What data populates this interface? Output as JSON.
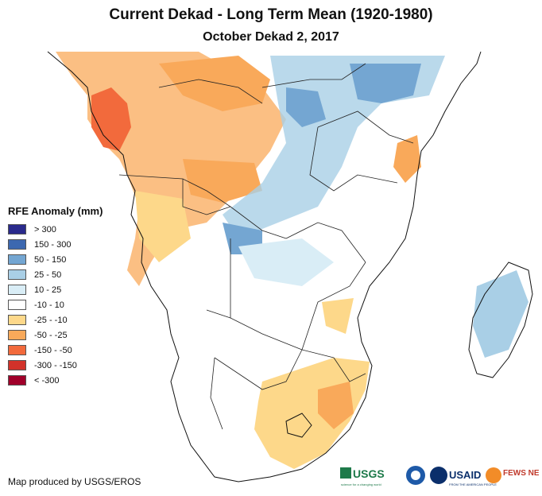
{
  "header": {
    "title": "Current Dekad - Long Term Mean (1920-1980)",
    "subtitle": "October Dekad 2, 2017"
  },
  "legend": {
    "title": "RFE Anomaly (mm)",
    "items": [
      {
        "label": "> 300",
        "color": "#2a2a8c"
      },
      {
        "label": "150 - 300",
        "color": "#3c68b0"
      },
      {
        "label": "50 - 150",
        "color": "#74a6d2"
      },
      {
        "label": "25 - 50",
        "color": "#a9cfe6"
      },
      {
        "label": "10 - 25",
        "color": "#d9edf6"
      },
      {
        "label": "-10 - 10",
        "color": "#ffffff"
      },
      {
        "label": "-25 - -10",
        "color": "#fdd88a"
      },
      {
        "label": "-50 - -25",
        "color": "#f9a95a"
      },
      {
        "label": "-150 - -50",
        "color": "#f26a3c"
      },
      {
        "label": "-300 - -150",
        "color": "#d2322a"
      },
      {
        "label": "< -300",
        "color": "#a0002a"
      }
    ]
  },
  "footer": {
    "credit": "Map produced by USGS/EROS",
    "logos": {
      "usgs": "USGS",
      "usgs_tagline": "science for a changing world",
      "usaid": "USAID",
      "usaid_tagline": "FROM THE AMERICAN PEOPLE",
      "fewsnet": "FEWS NET"
    }
  }
}
